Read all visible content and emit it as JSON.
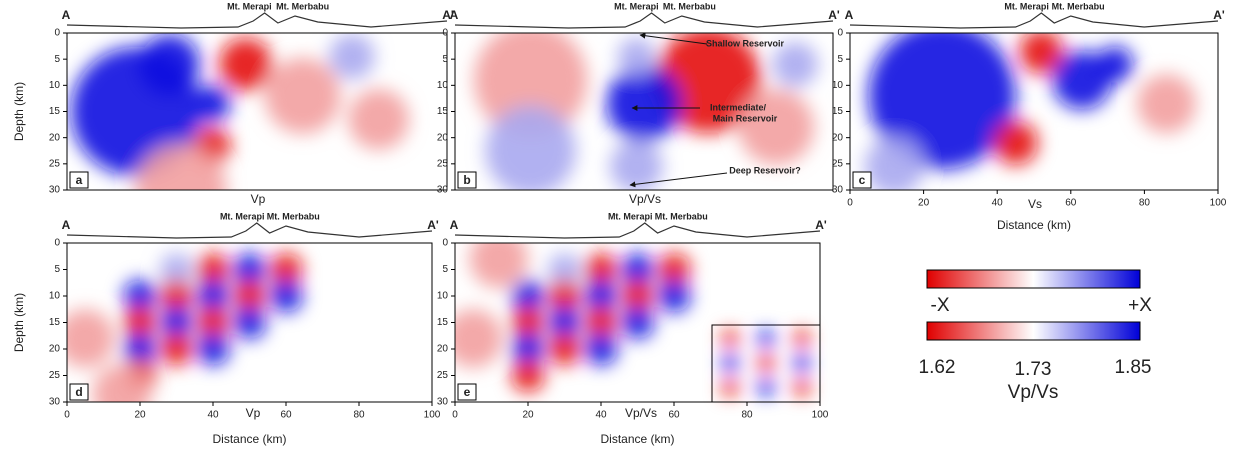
{
  "profile": {
    "start": "A",
    "end": "A'",
    "peaks": [
      "Mt. Merapi",
      "Mt. Merbabu"
    ]
  },
  "ylabel": "Depth (km)",
  "xlabel": "Distance (km)",
  "depth_ticks": [
    0,
    5,
    10,
    15,
    20,
    25,
    30
  ],
  "distance_ticks": [
    0,
    20,
    40,
    60,
    80,
    100
  ],
  "panels": [
    {
      "letter": "a",
      "caption": "Vp"
    },
    {
      "letter": "b",
      "caption": "Vp/Vs"
    },
    {
      "letter": "c",
      "caption": "Vs"
    },
    {
      "letter": "d",
      "caption": "Vp"
    },
    {
      "letter": "e",
      "caption": "Vp/Vs"
    }
  ],
  "annotations": [
    "Shallow Reservoir",
    "Intermediate/",
    "Main Reservoir",
    "Deep Reservoir?"
  ],
  "colorbars": [
    {
      "labels": [
        "-X",
        "+X"
      ]
    },
    {
      "labels": [
        "1.62",
        "1.73",
        "1.85"
      ],
      "title": "Vp/Vs"
    }
  ]
}
